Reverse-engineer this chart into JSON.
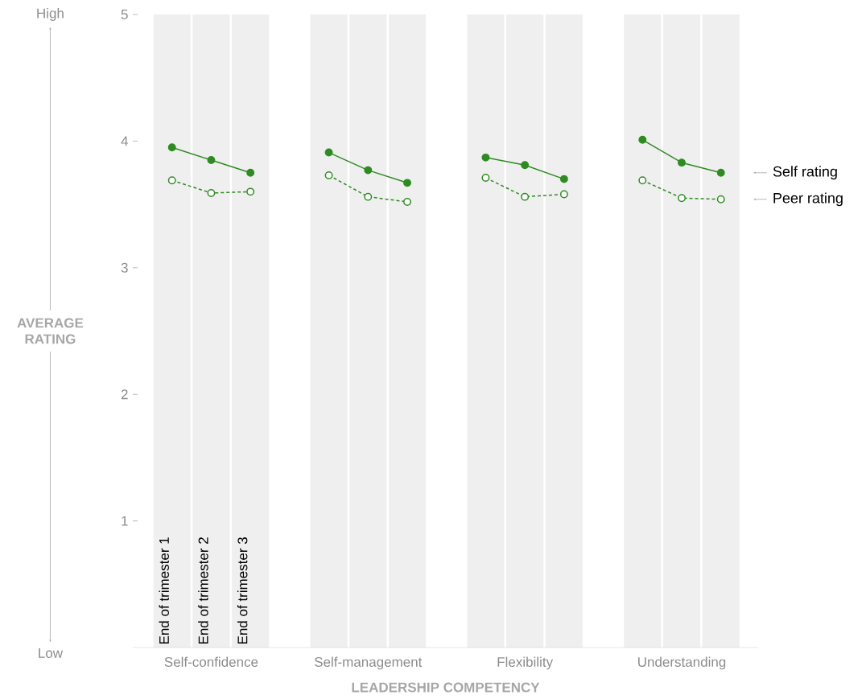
{
  "chart_data": {
    "type": "line",
    "xlabel": "LEADERSHIP COMPETENCY",
    "ylabel": "AVERAGE RATING",
    "categories": [
      "End of trimester 1",
      "End of trimester 2",
      "End of trimester 3",
      null,
      null,
      null,
      null,
      null,
      null,
      null,
      null,
      null,
      null,
      null,
      null
    ],
    "series": [
      {
        "name": "Self rating",
        "color": "#2e8b22",
        "line_style": "solid",
        "values": [
          3.95,
          3.85,
          3.75,
          null,
          3.91,
          3.77,
          3.67,
          null,
          3.87,
          3.81,
          3.7,
          null,
          4.01,
          3.83,
          3.75
        ]
      },
      {
        "name": "Peer rating",
        "color": "#2e8b22",
        "line_style": "dashed",
        "values": [
          3.69,
          3.59,
          3.6,
          null,
          3.73,
          3.56,
          3.52,
          null,
          3.71,
          3.56,
          3.58,
          null,
          3.69,
          3.55,
          3.54
        ]
      }
    ],
    "annotations": [
      "High",
      "Low",
      "Self-confidence",
      "Self-management",
      "Flexibility",
      "Understanding"
    ],
    "ylim": [
      0,
      5
    ],
    "yticks": [
      1,
      2,
      3,
      4,
      5
    ],
    "marker": "circle"
  }
}
